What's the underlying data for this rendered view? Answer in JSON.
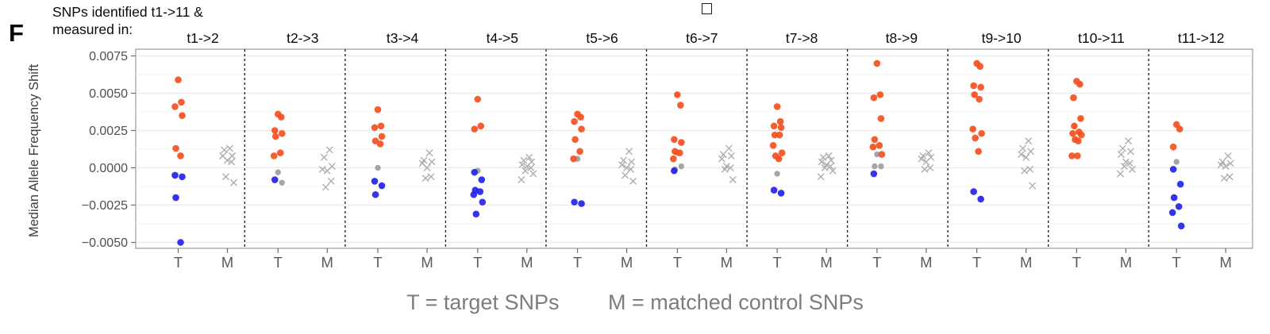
{
  "panel_label": "F",
  "header": {
    "line1": "SNPs identified t1->11 &",
    "line2": "measured in:"
  },
  "chart_data": {
    "type": "scatter",
    "ylabel": "Median Allele Frequency Shift",
    "ytick_labels": [
      "0.0075",
      "0.0050",
      "0.0025",
      "0.0000",
      "−0.0025",
      "−0.0050"
    ],
    "ytick_values": [
      0.0075,
      0.005,
      0.0025,
      0.0,
      -0.0025,
      -0.005
    ],
    "minor_tick_values": [
      0.00625,
      0.00375,
      0.00125,
      -0.00125,
      -0.00375
    ],
    "ylim": [
      -0.0054,
      0.008
    ],
    "grid": true,
    "group_labels": [
      "T",
      "M"
    ],
    "legend": [
      "T = target SNPs",
      "M = matched control SNPs"
    ],
    "colors": {
      "target_positive": "#f4501e",
      "target_negative": "#2323ea",
      "neutral_gray": "#9c9c9c",
      "control_mark": "#aeaeae",
      "axis_text": "#4f4f4f",
      "facet_separator": "#1a1a1a",
      "gridline_major": "#e9e9e9",
      "gridline_minor": "#f5f5f5",
      "panel_border": "#9a9a9a"
    },
    "facets": [
      {
        "label": "t1->2",
        "t_orange": [
          0.0059,
          0.0044,
          0.0041,
          0.0035,
          0.0013,
          0.0008
        ],
        "t_gray": [],
        "t_blue": [
          -0.0005,
          -0.0006,
          -0.002,
          -0.005
        ],
        "m_x": [
          0.0013,
          0.0012,
          0.0008,
          0.0008,
          0.0005,
          0.0004,
          -0.0006,
          -0.001
        ]
      },
      {
        "label": "t2->3",
        "t_orange": [
          0.0036,
          0.0034,
          0.0025,
          0.0023,
          0.0021,
          0.001,
          0.0008
        ],
        "t_gray": [
          -0.0003,
          -0.001
        ],
        "t_blue": [
          -0.0008
        ],
        "m_x": [
          0.0012,
          0.0007,
          0.0001,
          -0.0001,
          -0.0002,
          -0.0009,
          -0.0013
        ]
      },
      {
        "label": "t3->4",
        "t_orange": [
          0.0039,
          0.0028,
          0.0027,
          0.0021,
          0.0018,
          0.0016
        ],
        "t_gray": [
          0.0
        ],
        "t_blue": [
          -0.0009,
          -0.0012,
          -0.0018
        ],
        "m_x": [
          0.001,
          0.0005,
          0.0004,
          0.0003,
          0.0,
          -0.0006,
          -0.0007
        ]
      },
      {
        "label": "t4->5",
        "t_orange": [
          0.0046,
          0.0028,
          0.0026
        ],
        "t_gray": [
          -0.0002
        ],
        "t_blue": [
          -0.0003,
          -0.0008,
          -0.0015,
          -0.0016,
          -0.0018,
          -0.0023,
          -0.0031
        ],
        "m_x": [
          0.0007,
          0.0005,
          0.0004,
          0.0002,
          0.0001,
          0.0,
          -0.0002,
          -0.0004,
          -0.0008
        ]
      },
      {
        "label": "t5->6",
        "t_orange": [
          0.0036,
          0.0034,
          0.0031,
          0.0026,
          0.0019,
          0.0011,
          0.0006
        ],
        "t_gray": [
          0.0006
        ],
        "t_blue": [
          -0.0023,
          -0.0024
        ],
        "m_x": [
          0.0011,
          0.0005,
          0.0004,
          0.0002,
          0.0,
          -0.0001,
          -0.0005,
          -0.0009
        ]
      },
      {
        "label": "t6->7",
        "t_orange": [
          0.0049,
          0.0042,
          0.0019,
          0.0017,
          0.0011,
          0.001,
          0.0006
        ],
        "t_gray": [
          0.001,
          0.0001,
          -0.0001
        ],
        "t_blue": [
          -0.0002
        ],
        "m_x": [
          0.0013,
          0.0009,
          0.0008,
          0.0006,
          0.0001,
          0.0,
          -0.0001,
          -0.0008
        ]
      },
      {
        "label": "t7->8",
        "t_orange": [
          0.0041,
          0.0031,
          0.0028,
          0.0027,
          0.0022,
          0.0022,
          0.0015,
          0.001,
          0.0008,
          0.0006
        ],
        "t_gray": [
          -0.0004
        ],
        "t_blue": [
          -0.0015,
          -0.0017
        ],
        "m_x": [
          0.0008,
          0.0007,
          0.0005,
          0.0004,
          0.0002,
          0.0001,
          0.0,
          -0.0002,
          -0.0006
        ]
      },
      {
        "label": "t8->9",
        "t_orange": [
          0.007,
          0.0049,
          0.0047,
          0.0033,
          0.0019,
          0.0015,
          0.0014,
          0.0009
        ],
        "t_gray": [
          0.0009,
          0.0001,
          0.0001
        ],
        "t_blue": [
          -0.0004
        ],
        "m_x": [
          0.001,
          0.0008,
          0.0007,
          0.0006,
          0.0004,
          0.0,
          -0.0001
        ]
      },
      {
        "label": "t9->10",
        "t_orange": [
          0.007,
          0.0068,
          0.0055,
          0.0054,
          0.0049,
          0.0046,
          0.0026,
          0.0023,
          0.002,
          0.0011
        ],
        "t_gray": [],
        "t_blue": [
          -0.0016,
          -0.0021
        ],
        "m_x": [
          0.0018,
          0.0013,
          0.0011,
          0.0009,
          0.0007,
          -0.0001,
          -0.0002,
          -0.0012
        ]
      },
      {
        "label": "t10->11",
        "t_orange": [
          0.0058,
          0.0056,
          0.0047,
          0.0033,
          0.0028,
          0.0024,
          0.0023,
          0.0022,
          0.0019,
          0.0018,
          0.0008,
          0.0008
        ],
        "t_gray": [],
        "t_blue": [],
        "m_x": [
          0.0018,
          0.0013,
          0.0011,
          0.0009,
          0.0004,
          0.0003,
          0.0001,
          -0.0001,
          -0.0004
        ]
      },
      {
        "label": "t11->12",
        "t_orange": [
          0.0029,
          0.0026,
          0.0014
        ],
        "t_gray": [
          0.0004
        ],
        "t_blue": [
          -0.0001,
          -0.0011,
          -0.002,
          -0.0026,
          -0.003,
          -0.0039
        ],
        "m_x": [
          0.0008,
          0.0004,
          0.0003,
          0.0002,
          0.0001,
          -0.0006,
          -0.0007
        ]
      }
    ]
  }
}
